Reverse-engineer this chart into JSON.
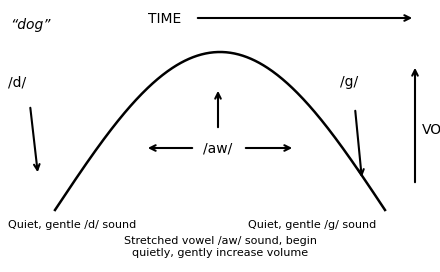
{
  "title_word": "“dog”",
  "time_label": "TIME",
  "d_label": "/d/",
  "aw_label": "/aw/",
  "g_label": "/g/",
  "volume_label": "VOLUME",
  "caption_left": "Quiet, gentle /d/ sound",
  "caption_right": "Quiet, gentle /g/ sound",
  "caption_bottom_1": "Stretched vowel /aw/ sound, begin",
  "caption_bottom_2": "quietly, gently increase volume",
  "curve_color": "#000000",
  "text_color": "#000000",
  "bg_color": "#ffffff"
}
